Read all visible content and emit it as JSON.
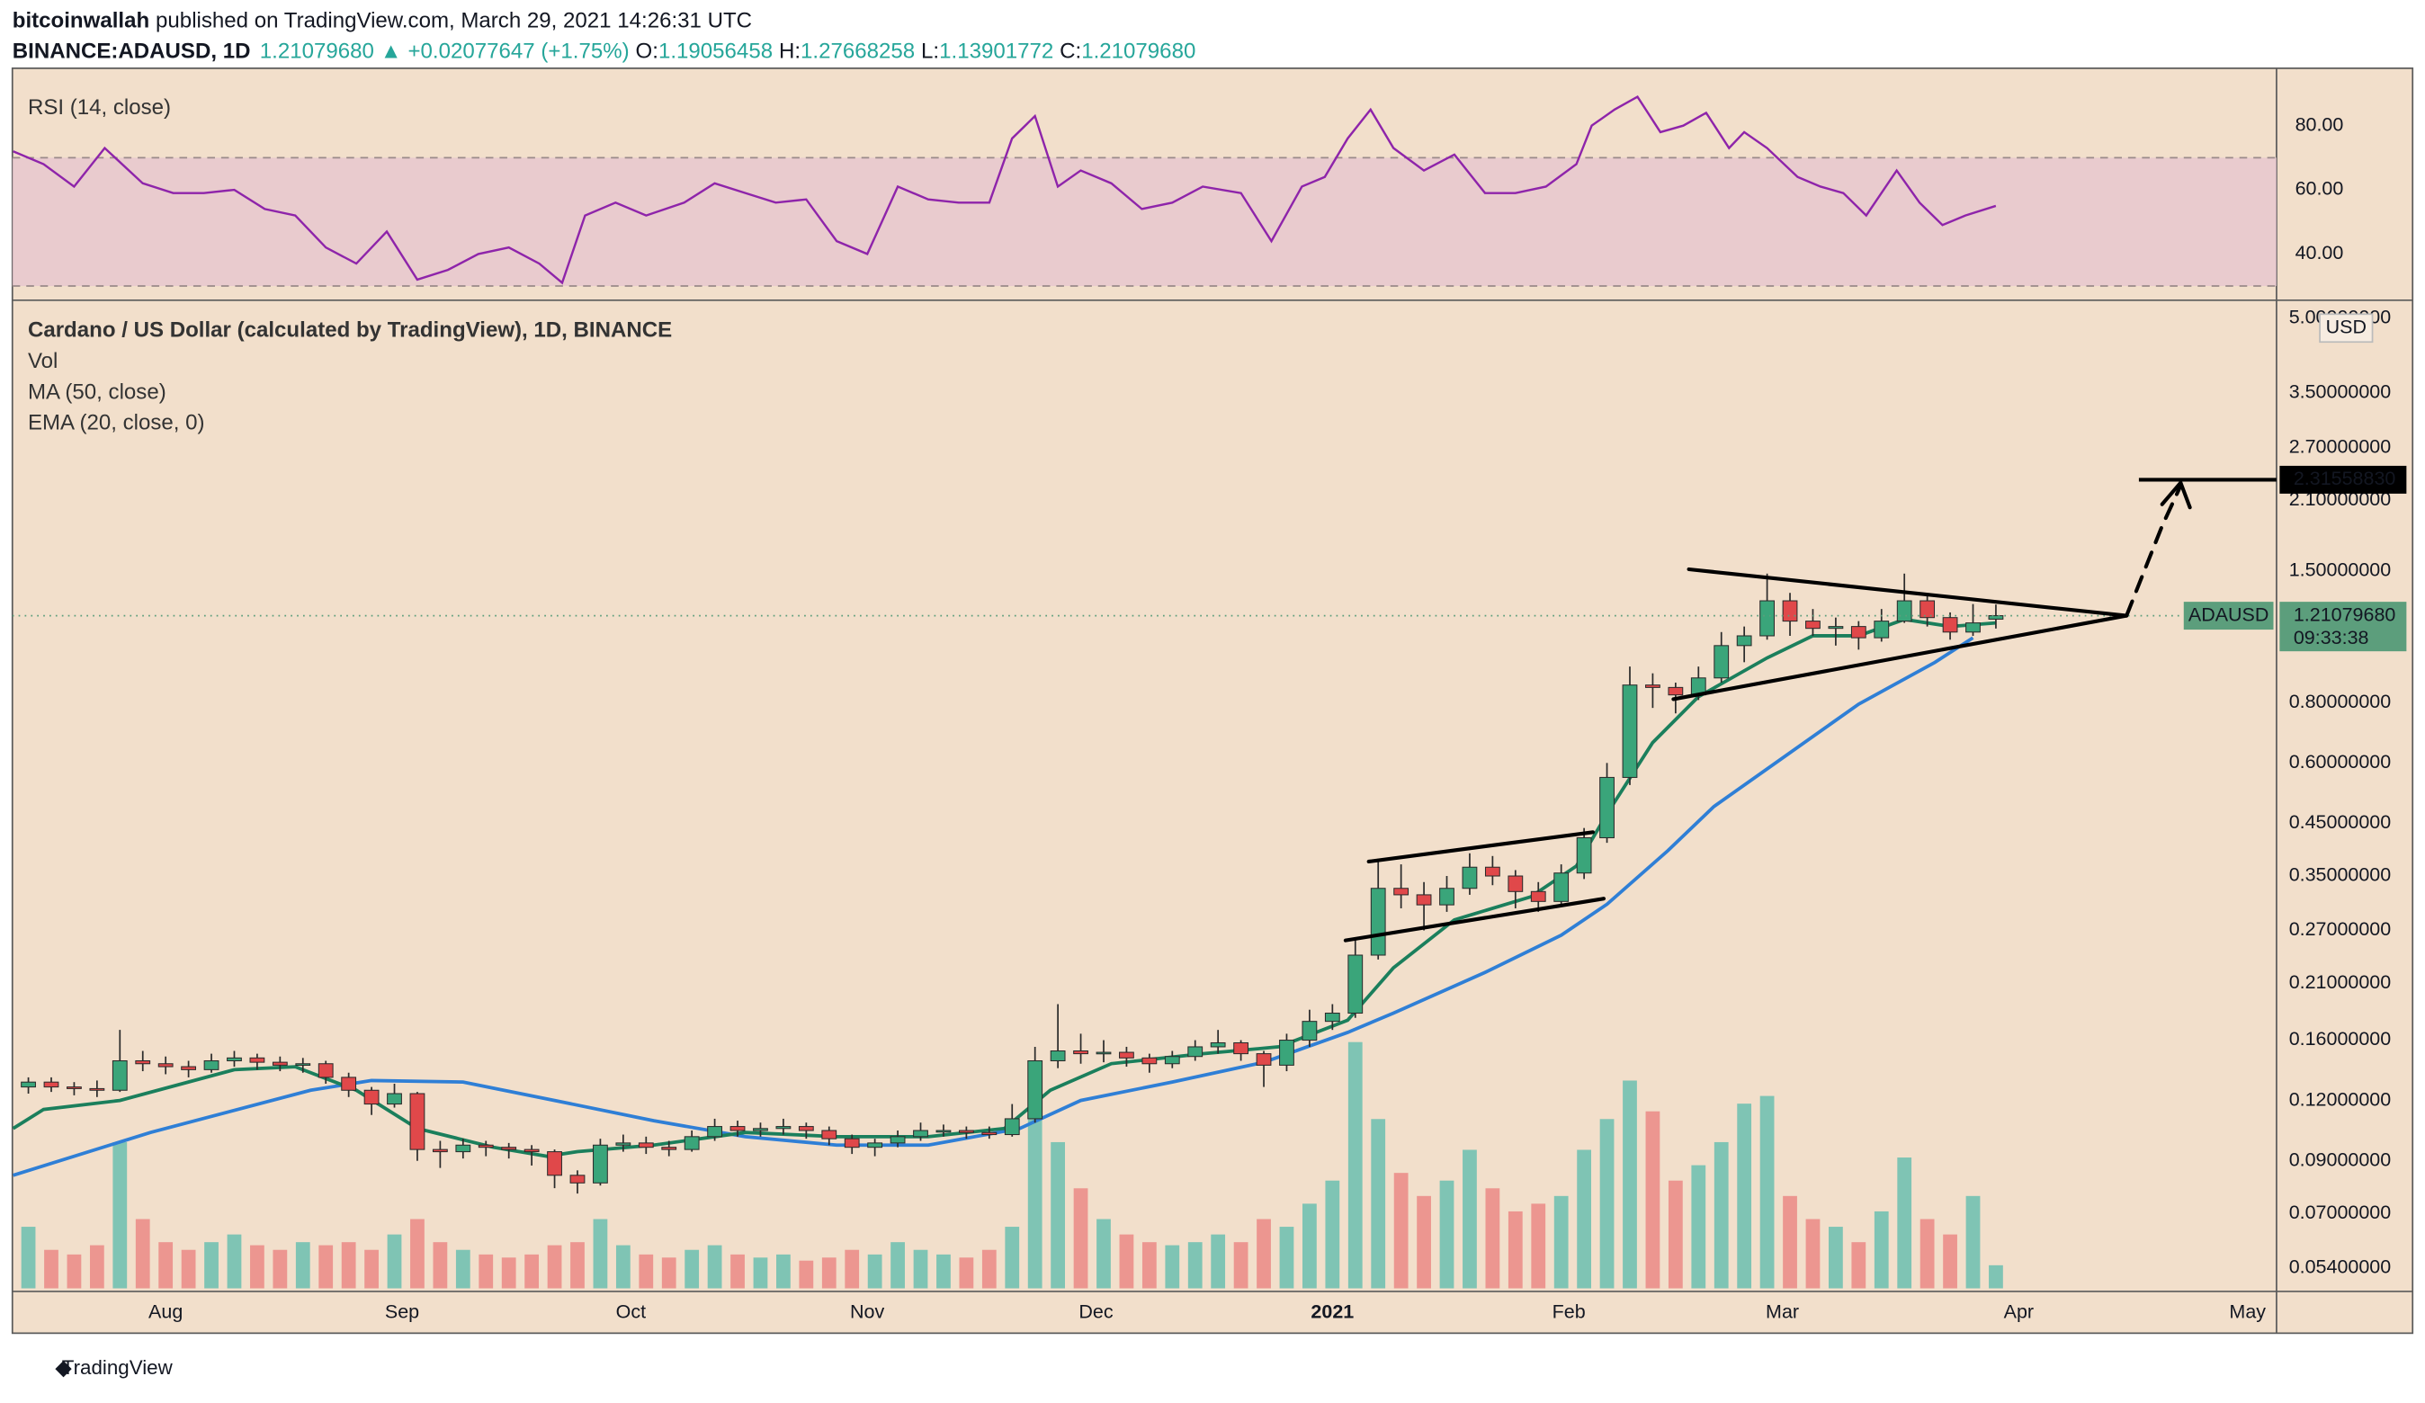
{
  "header": {
    "author": "bitcoinwallah",
    "published": "published on TradingView.com, March 29, 2021 14:26:31 UTC",
    "symbol": "BINANCE:ADAUSD, 1D",
    "price": "1.21079680",
    "arrow": "▲",
    "change": "+0.02077647 (+1.75%)",
    "o_label": "O:",
    "open": "1.19056458",
    "h_label": "H:",
    "high": "1.27668258",
    "l_label": "L:",
    "low": "1.13901772",
    "c_label": "C:",
    "close": "1.21079680"
  },
  "footer": {
    "brand": "TradingView"
  },
  "chart_data": [
    {
      "type": "candlestick",
      "title": "Cardano / US Dollar (calculated by TradingView), 1D, BINANCE",
      "y_unit": "USD",
      "log": true,
      "grid": false,
      "x": [
        2,
        5,
        8,
        11,
        14,
        17,
        20,
        23,
        26,
        29,
        32,
        35,
        38,
        41,
        44,
        47,
        50,
        53,
        56,
        59,
        62,
        65,
        68,
        71,
        74,
        77,
        80,
        83,
        86,
        89,
        92,
        95,
        98,
        101,
        104,
        107,
        110,
        113,
        116,
        119,
        122,
        125,
        128,
        131,
        134,
        137,
        140,
        143,
        146,
        149,
        152,
        155,
        158,
        161,
        164,
        167,
        170,
        173,
        176,
        179,
        182,
        185,
        188,
        191,
        194,
        197,
        200,
        203,
        206,
        209,
        212,
        215,
        218,
        221,
        224,
        227,
        230,
        233,
        236,
        239,
        242,
        245,
        248,
        251,
        254,
        257,
        260
      ],
      "open": [
        0.128,
        0.131,
        0.128,
        0.127,
        0.126,
        0.145,
        0.143,
        0.141,
        0.139,
        0.145,
        0.147,
        0.144,
        0.142,
        0.143,
        0.134,
        0.126,
        0.118,
        0.124,
        0.095,
        0.094,
        0.097,
        0.096,
        0.095,
        0.094,
        0.084,
        0.081,
        0.097,
        0.098,
        0.096,
        0.095,
        0.101,
        0.106,
        0.104,
        0.105,
        0.106,
        0.104,
        0.1,
        0.096,
        0.098,
        0.101,
        0.104,
        0.104,
        0.103,
        0.102,
        0.11,
        0.145,
        0.152,
        0.15,
        0.151,
        0.147,
        0.143,
        0.148,
        0.155,
        0.158,
        0.15,
        0.142,
        0.16,
        0.175,
        0.182,
        0.24,
        0.33,
        0.32,
        0.305,
        0.33,
        0.365,
        0.35,
        0.325,
        0.31,
        0.355,
        0.42,
        0.56,
        0.87,
        0.86,
        0.83,
        0.9,
        1.05,
        1.1,
        1.3,
        1.18,
        1.14,
        1.15,
        1.09,
        1.18,
        1.3,
        1.2,
        1.12,
        1.191
      ],
      "high": [
        0.134,
        0.134,
        0.131,
        0.132,
        0.168,
        0.152,
        0.148,
        0.145,
        0.15,
        0.152,
        0.15,
        0.148,
        0.147,
        0.145,
        0.137,
        0.128,
        0.13,
        0.125,
        0.099,
        0.1,
        0.099,
        0.098,
        0.097,
        0.095,
        0.086,
        0.1,
        0.102,
        0.101,
        0.099,
        0.104,
        0.11,
        0.109,
        0.108,
        0.11,
        0.108,
        0.106,
        0.102,
        0.1,
        0.104,
        0.108,
        0.107,
        0.106,
        0.106,
        0.118,
        0.155,
        0.19,
        0.165,
        0.16,
        0.155,
        0.15,
        0.152,
        0.16,
        0.168,
        0.16,
        0.152,
        0.165,
        0.185,
        0.19,
        0.26,
        0.38,
        0.37,
        0.34,
        0.35,
        0.39,
        0.385,
        0.36,
        0.34,
        0.37,
        0.44,
        0.6,
        0.95,
        0.92,
        0.88,
        0.95,
        1.12,
        1.15,
        1.48,
        1.35,
        1.25,
        1.2,
        1.18,
        1.25,
        1.48,
        1.33,
        1.23,
        1.28,
        1.277
      ],
      "low": [
        0.124,
        0.125,
        0.123,
        0.122,
        0.125,
        0.138,
        0.136,
        0.134,
        0.137,
        0.141,
        0.139,
        0.138,
        0.137,
        0.13,
        0.122,
        0.112,
        0.116,
        0.09,
        0.087,
        0.091,
        0.092,
        0.091,
        0.088,
        0.079,
        0.077,
        0.08,
        0.094,
        0.093,
        0.092,
        0.094,
        0.099,
        0.101,
        0.101,
        0.102,
        0.1,
        0.097,
        0.093,
        0.092,
        0.096,
        0.099,
        0.101,
        0.1,
        0.1,
        0.101,
        0.108,
        0.14,
        0.143,
        0.144,
        0.141,
        0.137,
        0.14,
        0.145,
        0.15,
        0.145,
        0.128,
        0.138,
        0.155,
        0.168,
        0.178,
        0.235,
        0.3,
        0.27,
        0.295,
        0.32,
        0.335,
        0.3,
        0.295,
        0.305,
        0.345,
        0.41,
        0.54,
        0.78,
        0.76,
        0.81,
        0.88,
        0.97,
        1.08,
        1.1,
        1.1,
        1.05,
        1.03,
        1.07,
        1.17,
        1.15,
        1.08,
        1.1,
        1.139
      ],
      "close": [
        0.131,
        0.128,
        0.127,
        0.126,
        0.145,
        0.143,
        0.141,
        0.139,
        0.145,
        0.147,
        0.144,
        0.142,
        0.143,
        0.134,
        0.126,
        0.118,
        0.124,
        0.095,
        0.094,
        0.097,
        0.096,
        0.095,
        0.094,
        0.084,
        0.081,
        0.097,
        0.098,
        0.096,
        0.095,
        0.101,
        0.106,
        0.104,
        0.105,
        0.106,
        0.104,
        0.1,
        0.096,
        0.098,
        0.101,
        0.104,
        0.104,
        0.103,
        0.102,
        0.11,
        0.145,
        0.152,
        0.15,
        0.151,
        0.147,
        0.143,
        0.148,
        0.155,
        0.158,
        0.15,
        0.142,
        0.16,
        0.175,
        0.182,
        0.24,
        0.33,
        0.32,
        0.305,
        0.33,
        0.365,
        0.35,
        0.325,
        0.31,
        0.355,
        0.42,
        0.56,
        0.87,
        0.86,
        0.83,
        0.9,
        1.05,
        1.1,
        1.3,
        1.18,
        1.14,
        1.15,
        1.09,
        1.18,
        1.3,
        1.2,
        1.12,
        1.17,
        1.211
      ],
      "volume_label": "Vol",
      "volume": [
        40,
        25,
        22,
        28,
        95,
        45,
        30,
        25,
        30,
        35,
        28,
        25,
        30,
        28,
        30,
        25,
        35,
        45,
        30,
        25,
        22,
        20,
        22,
        28,
        30,
        45,
        28,
        22,
        20,
        25,
        28,
        22,
        20,
        22,
        18,
        20,
        25,
        22,
        30,
        25,
        22,
        20,
        25,
        40,
        110,
        95,
        65,
        45,
        35,
        30,
        28,
        30,
        35,
        30,
        45,
        40,
        55,
        70,
        160,
        110,
        75,
        60,
        70,
        90,
        65,
        50,
        55,
        60,
        90,
        110,
        135,
        115,
        70,
        80,
        95,
        120,
        125,
        60,
        45,
        40,
        30,
        50,
        85,
        45,
        35,
        60,
        15
      ],
      "vlim": [
        0,
        640
      ],
      "up_color": "#3aa57a",
      "down_color": "#e0484a",
      "up_volume_color": "#7fc4b4",
      "down_volume_color": "#ec9690",
      "overlays": [
        {
          "name": "MA (50, close)",
          "color": "#2f7fd6",
          "x": [
            0,
            18,
            39,
            47,
            59,
            71,
            84,
            96,
            108,
            120,
            132,
            140,
            152,
            164,
            175,
            181,
            193,
            203,
            209,
            217,
            223,
            232,
            242,
            252,
            257
          ],
          "values": [
            0.084,
            0.103,
            0.126,
            0.132,
            0.131,
            0.12,
            0.109,
            0.101,
            0.097,
            0.097,
            0.105,
            0.12,
            0.131,
            0.144,
            0.166,
            0.182,
            0.221,
            0.264,
            0.306,
            0.395,
            0.487,
            0.614,
            0.794,
            0.969,
            1.09
          ]
        },
        {
          "name": "EMA (20, close, 0)",
          "color": "#1b7f5c",
          "x": [
            0,
            4,
            14,
            29,
            37,
            45,
            53,
            63,
            70,
            74,
            84,
            96,
            108,
            120,
            130,
            136,
            144,
            156,
            166,
            175,
            181,
            189,
            199,
            205,
            209,
            215,
            221,
            230,
            236,
            242,
            248,
            254,
            260
          ],
          "values": [
            0.105,
            0.115,
            0.12,
            0.139,
            0.141,
            0.126,
            0.105,
            0.096,
            0.092,
            0.094,
            0.097,
            0.103,
            0.101,
            0.101,
            0.105,
            0.126,
            0.143,
            0.15,
            0.155,
            0.176,
            0.226,
            0.284,
            0.317,
            0.367,
            0.471,
            0.661,
            0.823,
            0.99,
            1.1,
            1.1,
            1.19,
            1.15,
            1.17
          ]
        }
      ],
      "xlim": [
        -0.1,
        296.8
      ],
      "xticks": [
        {
          "value": 20,
          "label": "Aug"
        },
        {
          "value": 51,
          "label": "Sep"
        },
        {
          "value": 81,
          "label": "Oct"
        },
        {
          "value": 112,
          "label": "Nov"
        },
        {
          "value": 142,
          "label": "Dec"
        },
        {
          "value": 173,
          "label": "2021"
        },
        {
          "value": 204,
          "label": "Feb"
        },
        {
          "value": 232,
          "label": "Mar"
        },
        {
          "value": 263,
          "label": "Apr"
        },
        {
          "value": 293,
          "label": "May"
        }
      ],
      "ylim": [
        0.049,
        5.37
      ],
      "yticks": [
        {
          "value": 5,
          "label": "5.00000000"
        },
        {
          "value": 3.5,
          "label": "3.50000000"
        },
        {
          "value": 2.7,
          "label": "2.70000000"
        },
        {
          "value": 2.1,
          "label": "2.10000000"
        },
        {
          "value": 1.5,
          "label": "1.50000000"
        },
        {
          "value": 0.8,
          "label": "0.80000000"
        },
        {
          "value": 0.6,
          "label": "0.60000000"
        },
        {
          "value": 0.45,
          "label": "0.45000000"
        },
        {
          "value": 0.35,
          "label": "0.35000000"
        },
        {
          "value": 0.27,
          "label": "0.27000000"
        },
        {
          "value": 0.21,
          "label": "0.21000000"
        },
        {
          "value": 0.16,
          "label": "0.16000000"
        },
        {
          "value": 0.12,
          "label": "0.12000000"
        },
        {
          "value": 0.09,
          "label": "0.09000000"
        },
        {
          "value": 0.07,
          "label": "0.07000000"
        },
        {
          "value": 0.054,
          "label": "0.05400000"
        }
      ],
      "last_price": {
        "value": 1.2107968,
        "label": "1.21079680",
        "symbol": "ADAUSD",
        "countdown": "09:33:38",
        "color": "#5c9e7c"
      },
      "target_line": {
        "value": 2.3155883,
        "label": "2.31558830"
      }
    },
    {
      "type": "line",
      "title": "RSI (14, close)",
      "color": "#8e24aa",
      "x": [
        0,
        4,
        8,
        12,
        17,
        21,
        25,
        29,
        33,
        37,
        41,
        45,
        49,
        53,
        57,
        61,
        65,
        69,
        72,
        75,
        79,
        83,
        88,
        92,
        96,
        100,
        104,
        108,
        112,
        116,
        120,
        124,
        128,
        131,
        134,
        137,
        140,
        144,
        148,
        152,
        156,
        161,
        165,
        169,
        172,
        175,
        178,
        181,
        185,
        189,
        193,
        197,
        201,
        205,
        207,
        210,
        213,
        216,
        219,
        222,
        225,
        227,
        230,
        234,
        237,
        240,
        243,
        247,
        250,
        253,
        256,
        260
      ],
      "values": [
        72,
        68,
        61,
        73,
        62,
        59,
        59,
        60,
        54,
        52,
        42,
        37,
        47,
        32,
        35,
        40,
        42,
        37,
        31,
        52,
        56,
        52,
        56,
        62,
        59,
        56,
        57,
        44,
        40,
        61,
        57,
        56,
        56,
        76,
        83,
        61,
        66,
        62,
        54,
        56,
        61,
        59,
        44,
        61,
        64,
        76,
        85,
        73,
        66,
        71,
        59,
        59,
        61,
        68,
        80,
        85,
        89,
        78,
        80,
        84,
        73,
        78,
        73,
        64,
        61,
        59,
        52,
        66,
        56,
        49,
        52,
        55
      ],
      "xlim": [
        -0.1,
        296.8
      ],
      "ylim": [
        27.5,
        95
      ],
      "yticks": [
        {
          "value": 40,
          "label": "40.00"
        },
        {
          "value": 60,
          "label": "60.00"
        },
        {
          "value": 80,
          "label": "80.00"
        }
      ],
      "band": [
        30,
        70
      ],
      "band_color": "#e6c4cf"
    }
  ]
}
